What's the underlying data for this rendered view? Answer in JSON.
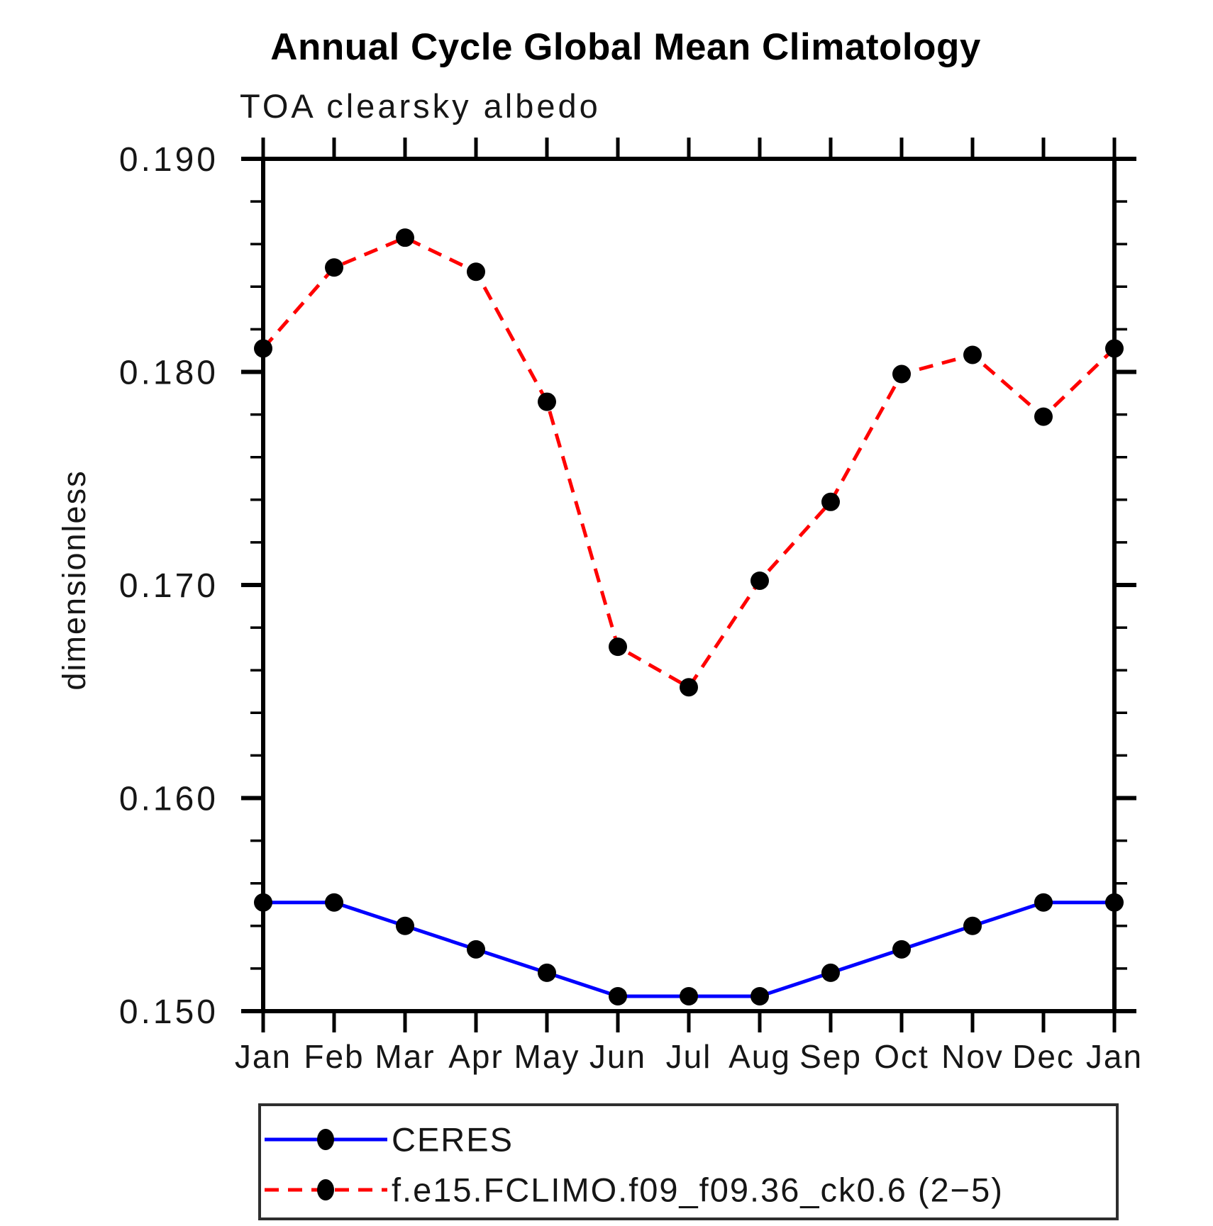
{
  "chart_data": {
    "type": "line",
    "title": "Annual Cycle Global Mean Climatology",
    "subtitle": "TOA clearsky albedo",
    "xlabel": "",
    "ylabel": "dimensionless",
    "categories": [
      "Jan",
      "Feb",
      "Mar",
      "Apr",
      "May",
      "Jun",
      "Jul",
      "Aug",
      "Sep",
      "Oct",
      "Nov",
      "Dec",
      "Jan"
    ],
    "ylim": [
      0.15,
      0.19
    ],
    "ytick_major_interval": 0.01,
    "ytick_minor_interval": 0.002,
    "ytick_labels": [
      "0.190",
      "0.180",
      "0.170",
      "0.160",
      "0.150"
    ],
    "grid": false,
    "legend_position": "bottom-left-box",
    "series": [
      {
        "name": "CERES",
        "color": "#0000ff",
        "line_style": "solid",
        "marker": "filled-circle",
        "marker_color": "#000000",
        "values": [
          0.1551,
          0.1551,
          0.154,
          0.1529,
          0.1518,
          0.1507,
          0.1507,
          0.1507,
          0.1518,
          0.1529,
          0.154,
          0.1551,
          0.1551
        ]
      },
      {
        "name": "f.e15.FCLIMO.f09_f09.36_ck0.6 (2−5)",
        "color": "#ff0000",
        "line_style": "dashed",
        "marker": "filled-circle",
        "marker_color": "#000000",
        "values": [
          0.1811,
          0.1849,
          0.1863,
          0.1847,
          0.1786,
          0.1671,
          0.1652,
          0.1702,
          0.1739,
          0.1799,
          0.1808,
          0.1779,
          0.1811
        ]
      }
    ]
  }
}
